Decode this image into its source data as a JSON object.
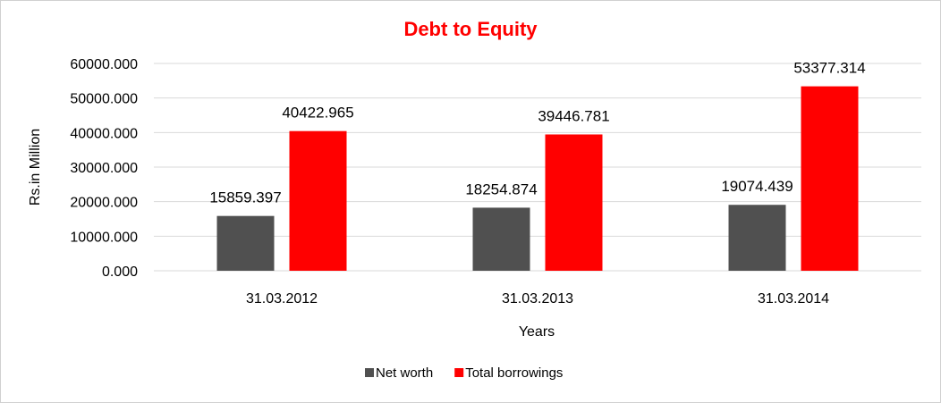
{
  "chart_data": {
    "type": "bar",
    "title": "Debt to Equity",
    "title_color": "#ff0000",
    "xlabel": "Years",
    "ylabel": "Rs.in Million",
    "categories": [
      "31.03.2012",
      "31.03.2013",
      "31.03.2014"
    ],
    "series": [
      {
        "name": "Net worth",
        "color": "#505050",
        "values": [
          15859.397,
          18254.874,
          19074.439
        ],
        "labels": [
          "15859.397",
          "18254.874",
          "19074.439"
        ]
      },
      {
        "name": "Total borrowings",
        "color": "#ff0000",
        "values": [
          40422.965,
          39446.781,
          53377.314
        ],
        "labels": [
          "40422.965",
          "39446.781",
          "53377.314"
        ]
      }
    ],
    "ylim": [
      0,
      60000
    ],
    "yticks": [
      "0.000",
      "10000.000",
      "20000.000",
      "30000.000",
      "40000.000",
      "50000.000",
      "60000.000"
    ],
    "grid": true,
    "legend_position": "bottom"
  }
}
